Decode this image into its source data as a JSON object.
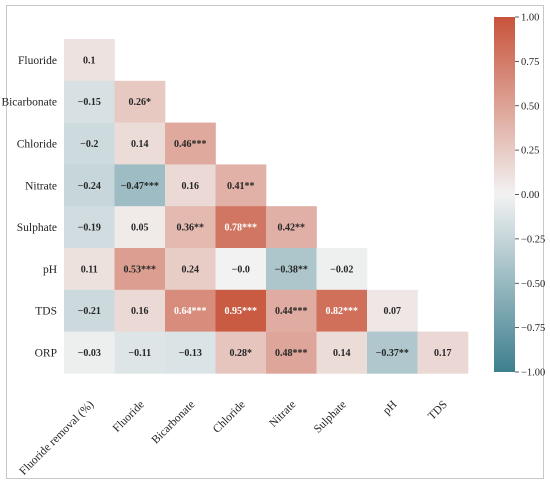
{
  "chart_data": {
    "type": "heatmap",
    "subtype": "lower-triangular correlation matrix",
    "row_labels": [
      "Fluoride",
      "Bicarbonate",
      "Chloride",
      "Nitrate",
      "Sulphate",
      "pH",
      "TDS",
      "ORP"
    ],
    "col_labels": [
      "Fluoride removal (%)",
      "Fluoride",
      "Bicarbonate",
      "Chloride",
      "Nitrate",
      "Sulphate",
      "pH",
      "TDS"
    ],
    "values": [
      [
        0.1
      ],
      [
        -0.15,
        0.26
      ],
      [
        -0.2,
        0.14,
        0.46
      ],
      [
        -0.24,
        -0.47,
        0.16,
        0.41
      ],
      [
        -0.19,
        0.05,
        0.36,
        0.78,
        0.42
      ],
      [
        0.11,
        0.53,
        0.24,
        -0.0,
        -0.38,
        -0.02
      ],
      [
        -0.21,
        0.16,
        0.64,
        0.95,
        0.44,
        0.82,
        0.07
      ],
      [
        -0.03,
        -0.11,
        -0.13,
        0.28,
        0.48,
        0.14,
        -0.37,
        0.17
      ]
    ],
    "labels": [
      [
        "0.1"
      ],
      [
        "−0.15",
        "0.26*"
      ],
      [
        "−0.2",
        "0.14",
        "0.46***"
      ],
      [
        "−0.24",
        "−0.47***",
        "0.16",
        "0.41**"
      ],
      [
        "−0.19",
        "0.05",
        "0.36**",
        "0.78***",
        "0.42**"
      ],
      [
        "0.11",
        "0.53***",
        "0.24",
        "−0.0",
        "−0.38**",
        "−0.02"
      ],
      [
        "−0.21",
        "0.16",
        "0.64***",
        "0.95***",
        "0.44***",
        "0.82***",
        "0.07"
      ],
      [
        "−0.03",
        "−0.11",
        "−0.13",
        "0.28*",
        "0.48***",
        "0.14",
        "−0.37**",
        "0.17"
      ]
    ],
    "colorbar": {
      "range": [
        -1.0,
        1.0
      ],
      "ticks": [
        "1.00",
        "0.75",
        "0.50",
        "0.25",
        "0.00",
        "−0.25",
        "−0.50",
        "−0.75",
        "−1.00"
      ],
      "tick_values": [
        1.0,
        0.75,
        0.5,
        0.25,
        0.0,
        -0.25,
        -0.5,
        -0.75,
        -1.0
      ],
      "colors": {
        "negative": "#3d7f8e",
        "neutral": "#f2f2f2",
        "positive": "#c8533a"
      }
    }
  }
}
